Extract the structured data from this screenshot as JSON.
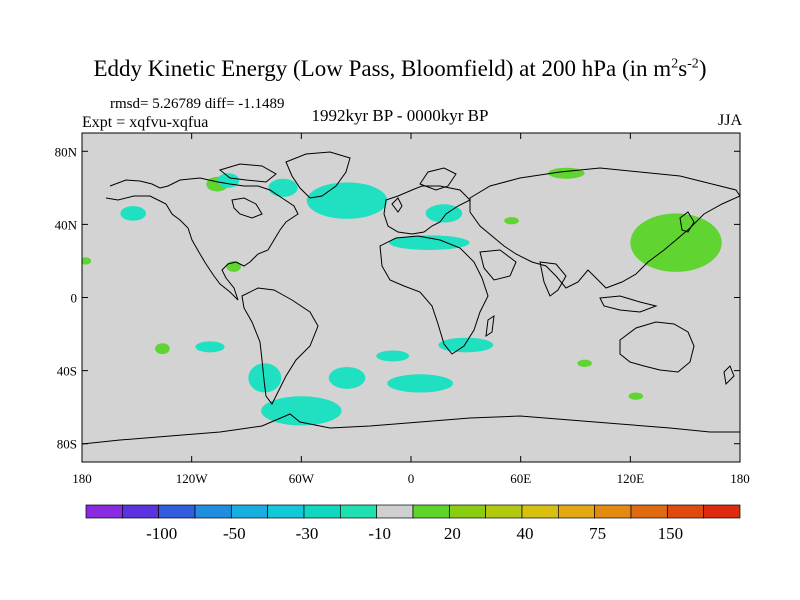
{
  "title": {
    "main": "Eddy Kinetic Energy (Low Pass, Bloomfield) at 200 hPa (in m",
    "sup1": "2",
    "mid": "s",
    "sup2": "-2",
    "end": ")"
  },
  "stats": "rmsd= 5.26789 diff= -1.1489",
  "expt": "Expt = xqfvu-xqfua",
  "period": "1992kyr BP - 0000kyr BP",
  "season": "JJA",
  "axes": {
    "lat_labels": [
      "80N",
      "40N",
      "0",
      "40S",
      "80S"
    ],
    "lat_values": [
      80,
      40,
      0,
      -40,
      -80
    ],
    "lon_labels": [
      "180",
      "120W",
      "60W",
      "0",
      "60E",
      "120E",
      "180"
    ],
    "lon_values": [
      -180,
      -120,
      -60,
      0,
      60,
      120,
      180
    ]
  },
  "colorbar": {
    "colors": [
      "#8a2be2",
      "#5a32e0",
      "#2f5fe0",
      "#1f8de0",
      "#18aee0",
      "#13c8d8",
      "#10d8c0",
      "#1fe0b0",
      "#cfcfcf",
      "#5fd42a",
      "#8ccc10",
      "#b4c810",
      "#d8c010",
      "#e4a810",
      "#e48a10",
      "#e06a10",
      "#e04a10",
      "#e02a10"
    ],
    "labels": [
      "-100",
      "-50",
      "-30",
      "-10",
      "20",
      "40",
      "75",
      "150"
    ]
  },
  "colors": {
    "land_bg": "#d3d3d3",
    "coast": "#000000",
    "neg": "#1fe0c0",
    "pos": "#60d430"
  },
  "anomalies": [
    {
      "name": "north-atlantic-neg",
      "sign": "neg",
      "lon": -35,
      "lat": 53,
      "rlon": 22,
      "rlat": 10
    },
    {
      "name": "greenland-west-neg",
      "sign": "neg",
      "lon": -70,
      "lat": 60,
      "rlon": 8,
      "rlat": 5
    },
    {
      "name": "north-pacific-neg",
      "sign": "neg",
      "lon": -152,
      "lat": 46,
      "rlon": 7,
      "rlat": 4
    },
    {
      "name": "hudson-pos",
      "sign": "pos",
      "lon": -106,
      "lat": 62,
      "rlon": 6,
      "rlat": 4
    },
    {
      "name": "alaska-neg",
      "sign": "neg",
      "lon": -100,
      "lat": 64,
      "rlon": 6,
      "rlat": 4
    },
    {
      "name": "mediterranean-neg",
      "sign": "neg",
      "lon": 10,
      "lat": 30,
      "rlon": 22,
      "rlat": 4
    },
    {
      "name": "europe-neg",
      "sign": "neg",
      "lon": 18,
      "lat": 46,
      "rlon": 10,
      "rlat": 5
    },
    {
      "name": "siberia-pos",
      "sign": "pos",
      "lon": 85,
      "lat": 68,
      "rlon": 10,
      "rlat": 3
    },
    {
      "name": "east-asia-pos",
      "sign": "pos",
      "lon": 145,
      "lat": 30,
      "rlon": 25,
      "rlat": 16
    },
    {
      "name": "mexico-pos",
      "sign": "pos",
      "lon": -97,
      "lat": 17,
      "rlon": 4,
      "rlat": 3
    },
    {
      "name": "hawaii-pos",
      "sign": "pos",
      "lon": -178,
      "lat": 20,
      "rlon": 3,
      "rlat": 2
    },
    {
      "name": "south-pacific-pos",
      "sign": "pos",
      "lon": -136,
      "lat": -28,
      "rlon": 4,
      "rlat": 3
    },
    {
      "name": "south-pacific-neg",
      "sign": "neg",
      "lon": -110,
      "lat": -27,
      "rlon": 8,
      "rlat": 3
    },
    {
      "name": "chile-neg",
      "sign": "neg",
      "lon": -80,
      "lat": -44,
      "rlon": 9,
      "rlat": 8
    },
    {
      "name": "argentina-neg",
      "sign": "neg",
      "lon": -35,
      "lat": -44,
      "rlon": 10,
      "rlat": 6
    },
    {
      "name": "drake-neg",
      "sign": "neg",
      "lon": -60,
      "lat": -62,
      "rlon": 22,
      "rlat": 8
    },
    {
      "name": "south-atlantic-neg",
      "sign": "neg",
      "lon": -10,
      "lat": -32,
      "rlon": 9,
      "rlat": 3
    },
    {
      "name": "south-atlantic-2-neg",
      "sign": "neg",
      "lon": 5,
      "lat": -47,
      "rlon": 18,
      "rlat": 5
    },
    {
      "name": "south-africa-neg",
      "sign": "neg",
      "lon": 30,
      "lat": -26,
      "rlon": 15,
      "rlat": 4
    },
    {
      "name": "indian-pos",
      "sign": "pos",
      "lon": 95,
      "lat": -36,
      "rlon": 4,
      "rlat": 2
    },
    {
      "name": "australia-pos",
      "sign": "pos",
      "lon": 123,
      "lat": -54,
      "rlon": 4,
      "rlat": 2
    },
    {
      "name": "caspian-pos",
      "sign": "pos",
      "lon": 55,
      "lat": 42,
      "rlon": 4,
      "rlat": 2
    }
  ]
}
